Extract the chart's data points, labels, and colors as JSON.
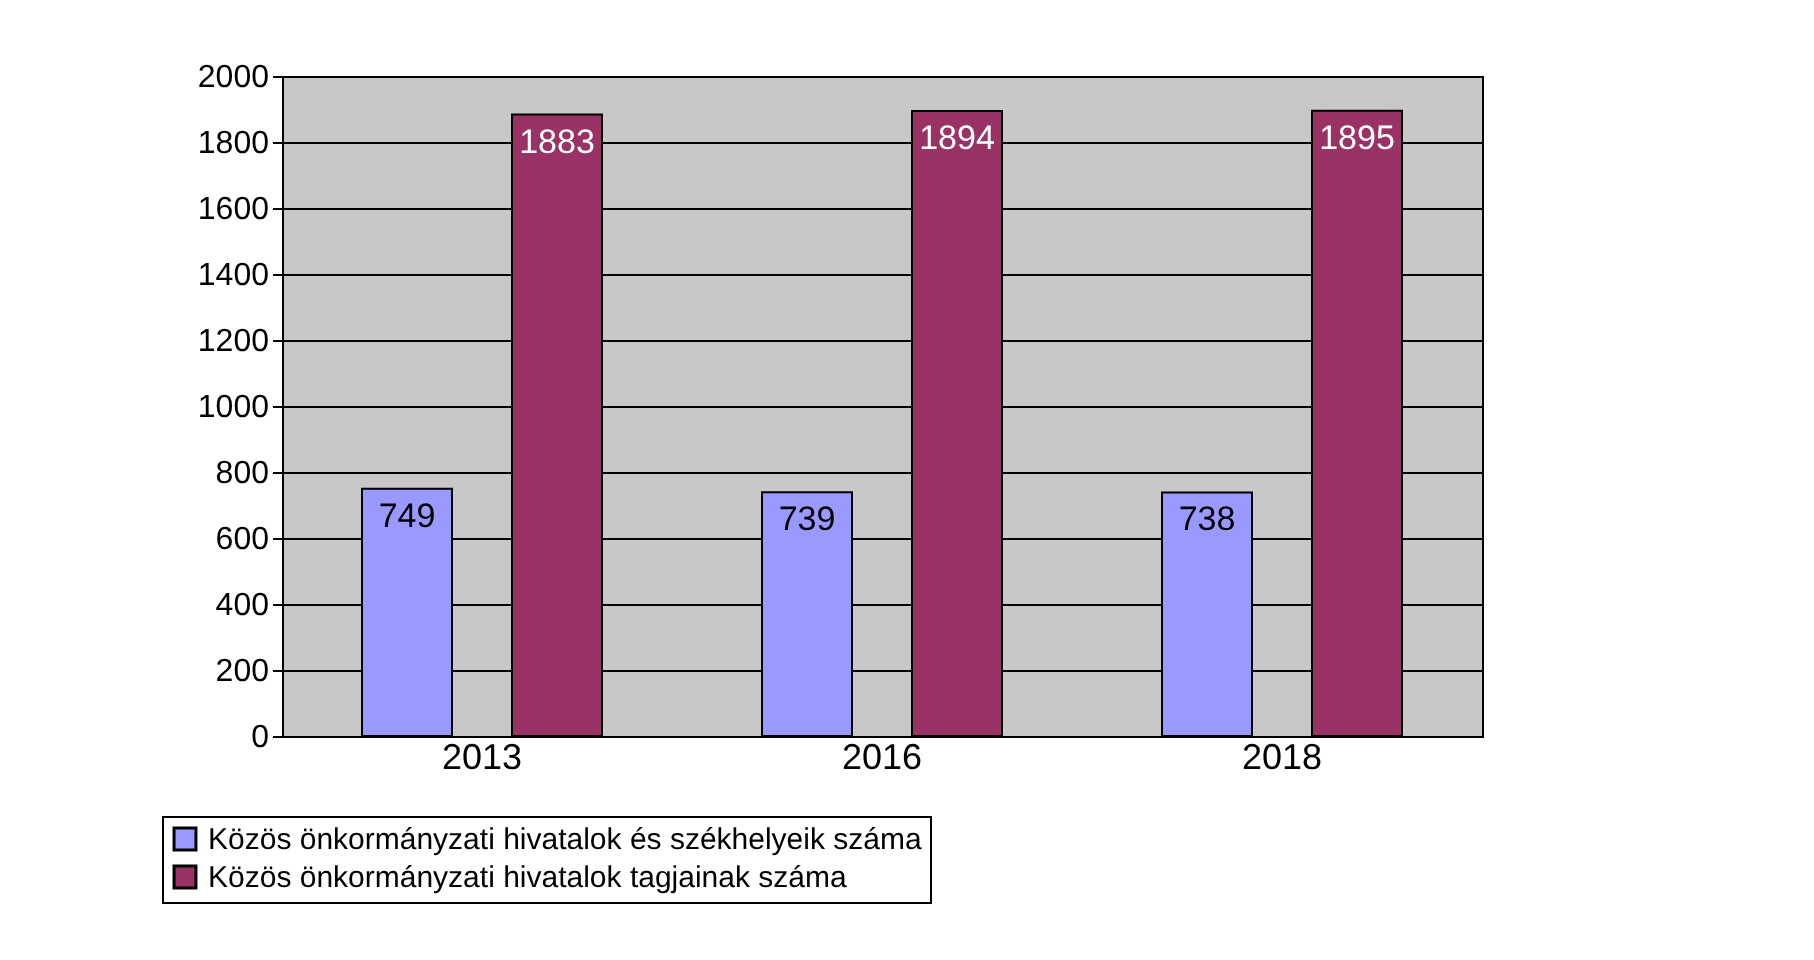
{
  "chart_data": {
    "type": "bar",
    "categories": [
      "2013",
      "2016",
      "2018"
    ],
    "series": [
      {
        "name": "Közös önkormányzati hivatalok és székhelyeik száma",
        "color": "#9999ff",
        "values": [
          749,
          739,
          738
        ]
      },
      {
        "name": "Közös önkormányzati hivatalok tagjainak száma",
        "color": "#993366",
        "values": [
          1883,
          1894,
          1895
        ]
      }
    ],
    "ylim": [
      0,
      2000
    ],
    "yticks": [
      0,
      200,
      400,
      600,
      800,
      1000,
      1200,
      1400,
      1600,
      1800,
      2000
    ],
    "grid": "y",
    "legend": "bottom left",
    "data_labels": true
  }
}
